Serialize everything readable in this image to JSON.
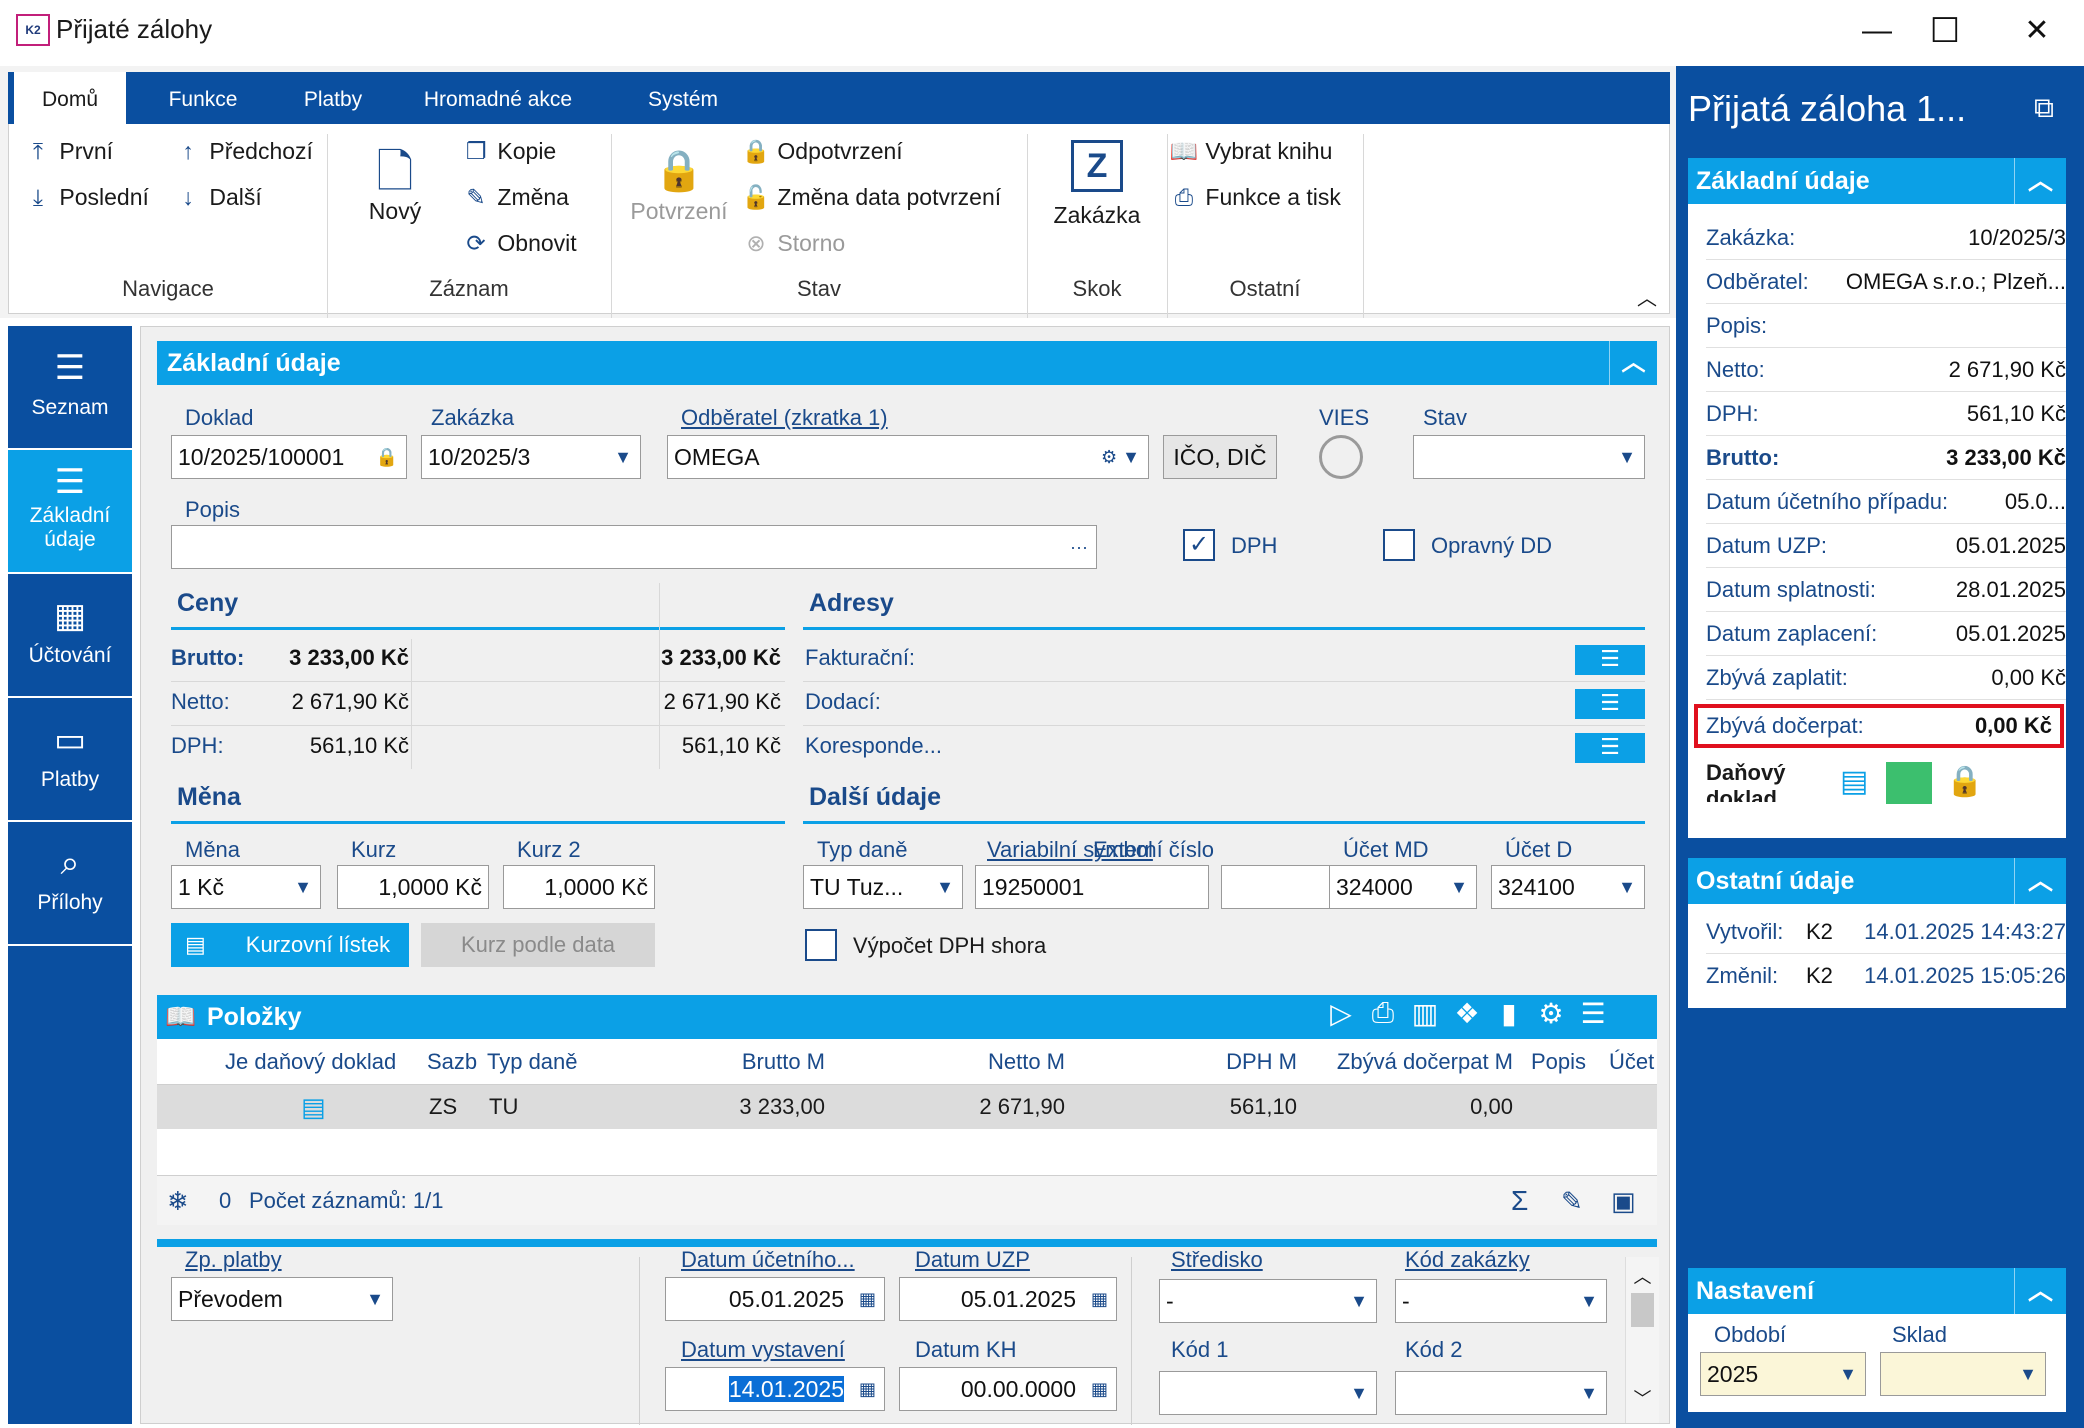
{
  "window": {
    "title": "Přijaté zálohy",
    "app_icon": "K2",
    "minimize": "—",
    "maximize": "☐",
    "close": "✕"
  },
  "ribbon": {
    "tabs": [
      "Domů",
      "Funkce",
      "Platby",
      "Hromadné akce",
      "Systém"
    ],
    "navigace": {
      "first": "První",
      "prev": "Předchozí",
      "last": "Poslední",
      "next": "Další",
      "label": "Navigace"
    },
    "zaznam": {
      "new": "Nový",
      "copy": "Kopie",
      "change": "Změna",
      "refresh": "Obnovit",
      "label": "Záznam"
    },
    "stav": {
      "confirm": "Potvrzení",
      "unconfirm": "Odpotvrzení",
      "change_date": "Změna data potvrzení",
      "storno": "Storno",
      "label": "Stav"
    },
    "skok": {
      "order": "Zakázka",
      "label": "Skok",
      "icon_letter": "Z"
    },
    "ostatni": {
      "select_book": "Vybrat knihu",
      "print": "Funkce a tisk",
      "label": "Ostatní"
    }
  },
  "leftnav": [
    {
      "label": "Seznam",
      "icon": "☰"
    },
    {
      "label": "Základní údaje",
      "icon": "☰"
    },
    {
      "label": "Účtování",
      "icon": "▦"
    },
    {
      "label": "Platby",
      "icon": "▭"
    },
    {
      "label": "Přílohy",
      "icon": "⌕"
    }
  ],
  "main": {
    "section_title": "Základní údaje",
    "doklad": {
      "label": "Doklad",
      "value": "10/2025/100001"
    },
    "zakazka": {
      "label": "Zakázka",
      "value": "10/2025/3"
    },
    "odberatel": {
      "label": "Odběratel (zkratka 1)",
      "value": "OMEGA"
    },
    "ico_btn": "IČO, DIČ",
    "vies": "VIES",
    "stav": {
      "label": "Stav",
      "value": ""
    },
    "popis": {
      "label": "Popis",
      "value": "",
      "more": "···"
    },
    "dph_check": {
      "label": "DPH",
      "checked": true
    },
    "opravny": {
      "label": "Opravný DD",
      "checked": false
    },
    "ceny": {
      "title": "Ceny",
      "rows": [
        {
          "label": "Brutto:",
          "v1": "3 233,00 Kč",
          "v2": "3 233,00 Kč"
        },
        {
          "label": "Netto:",
          "v1": "2 671,90 Kč",
          "v2": "2 671,90 Kč"
        },
        {
          "label": "DPH:",
          "v1": "561,10 Kč",
          "v2": "561,10 Kč"
        }
      ]
    },
    "adresy": {
      "title": "Adresy",
      "rows": [
        "Fakturační:",
        "Dodací:",
        "Koresponde..."
      ],
      "btn": "☰"
    },
    "mena": {
      "title": "Měna",
      "mena": {
        "label": "Měna",
        "value": "1 Kč"
      },
      "kurz": {
        "label": "Kurz",
        "value": "1,0000 Kč"
      },
      "kurz2": {
        "label": "Kurz 2",
        "value": "1,0000 Kč"
      },
      "kurzovni_btn": "Kurzovní lístek",
      "kurz_datum_btn": "Kurz podle data"
    },
    "dalsi": {
      "title": "Další údaje",
      "typ_dane": {
        "label": "Typ daně",
        "value": "TU Tuz..."
      },
      "vs": {
        "label": "Variabilní symbol",
        "value": "19250001"
      },
      "externi": {
        "label": "Externí číslo",
        "value": ""
      },
      "ucet_md": {
        "label": "Účet MD",
        "value": "324000"
      },
      "ucet_d": {
        "label": "Účet D",
        "value": "324100"
      },
      "vypocet": "Výpočet DPH shora"
    },
    "polozky": {
      "title": "Položky",
      "columns": [
        "Je daňový doklad",
        "Sazb",
        "Typ daně",
        "Brutto M",
        "Netto M",
        "DPH M",
        "Zbývá dočerpat M",
        "Popis",
        "Účet"
      ],
      "row": {
        "sazba": "ZS",
        "typ": "TU",
        "brutto": "3 233,00",
        "netto": "2 671,90",
        "dph": "561,10",
        "zbyva": "0,00"
      },
      "footer_count": "0",
      "footer_text": "Počet záznamů: 1/1"
    },
    "bottom": {
      "zp_platby": {
        "label": "Zp. platby",
        "value": "Převodem"
      },
      "datum_ucetniho": {
        "label": "Datum účetního...",
        "value": "05.01.2025"
      },
      "datum_uzp": {
        "label": "Datum UZP",
        "value": "05.01.2025"
      },
      "datum_vystaveni": {
        "label": "Datum vystavení",
        "value": "14.01.2025"
      },
      "datum_kh": {
        "label": "Datum KH",
        "value": "00.00.0000"
      },
      "stredisko": {
        "label": "Středisko",
        "value": "-"
      },
      "kod_zakazky": {
        "label": "Kód zakázky",
        "value": "-"
      },
      "kod1": {
        "label": "Kód 1",
        "value": ""
      },
      "kod2": {
        "label": "Kód 2",
        "value": ""
      }
    }
  },
  "right": {
    "title": "Přijatá záloha 1...",
    "zakladni": {
      "title": "Základní údaje",
      "rows": [
        {
          "k": "Zakázka:",
          "v": "10/2025/3"
        },
        {
          "k": "Odběratel:",
          "v": "OMEGA s.r.o.; Plzeň..."
        },
        {
          "k": "Popis:",
          "v": ""
        },
        {
          "k": "Netto:",
          "v": "2 671,90 Kč"
        },
        {
          "k": "DPH:",
          "v": "561,10 Kč"
        },
        {
          "k": "Brutto:",
          "v": "3 233,00 Kč"
        },
        {
          "k": "Datum účetního případu:",
          "v": "05.0..."
        },
        {
          "k": "Datum UZP:",
          "v": "05.01.2025"
        },
        {
          "k": "Datum splatnosti:",
          "v": "28.01.2025"
        },
        {
          "k": "Datum zaplacení:",
          "v": "05.01.2025"
        },
        {
          "k": "Zbývá zaplatit:",
          "v": "0,00 Kč"
        },
        {
          "k": "Zbývá dočerpat:",
          "v": "0,00 Kč"
        }
      ],
      "danovy": "Daňový doklad"
    },
    "ostatni": {
      "title": "Ostatní údaje",
      "vytvoril": {
        "k": "Vytvořil:",
        "user": "K2",
        "date": "14.01.2025 14:43:27"
      },
      "zmenil": {
        "k": "Změnil:",
        "user": "K2",
        "date": "14.01.2025 15:05:26"
      }
    },
    "nastaveni": {
      "title": "Nastavení",
      "obdobi": {
        "label": "Období",
        "value": "2025"
      },
      "sklad": {
        "label": "Sklad",
        "value": ""
      }
    }
  }
}
